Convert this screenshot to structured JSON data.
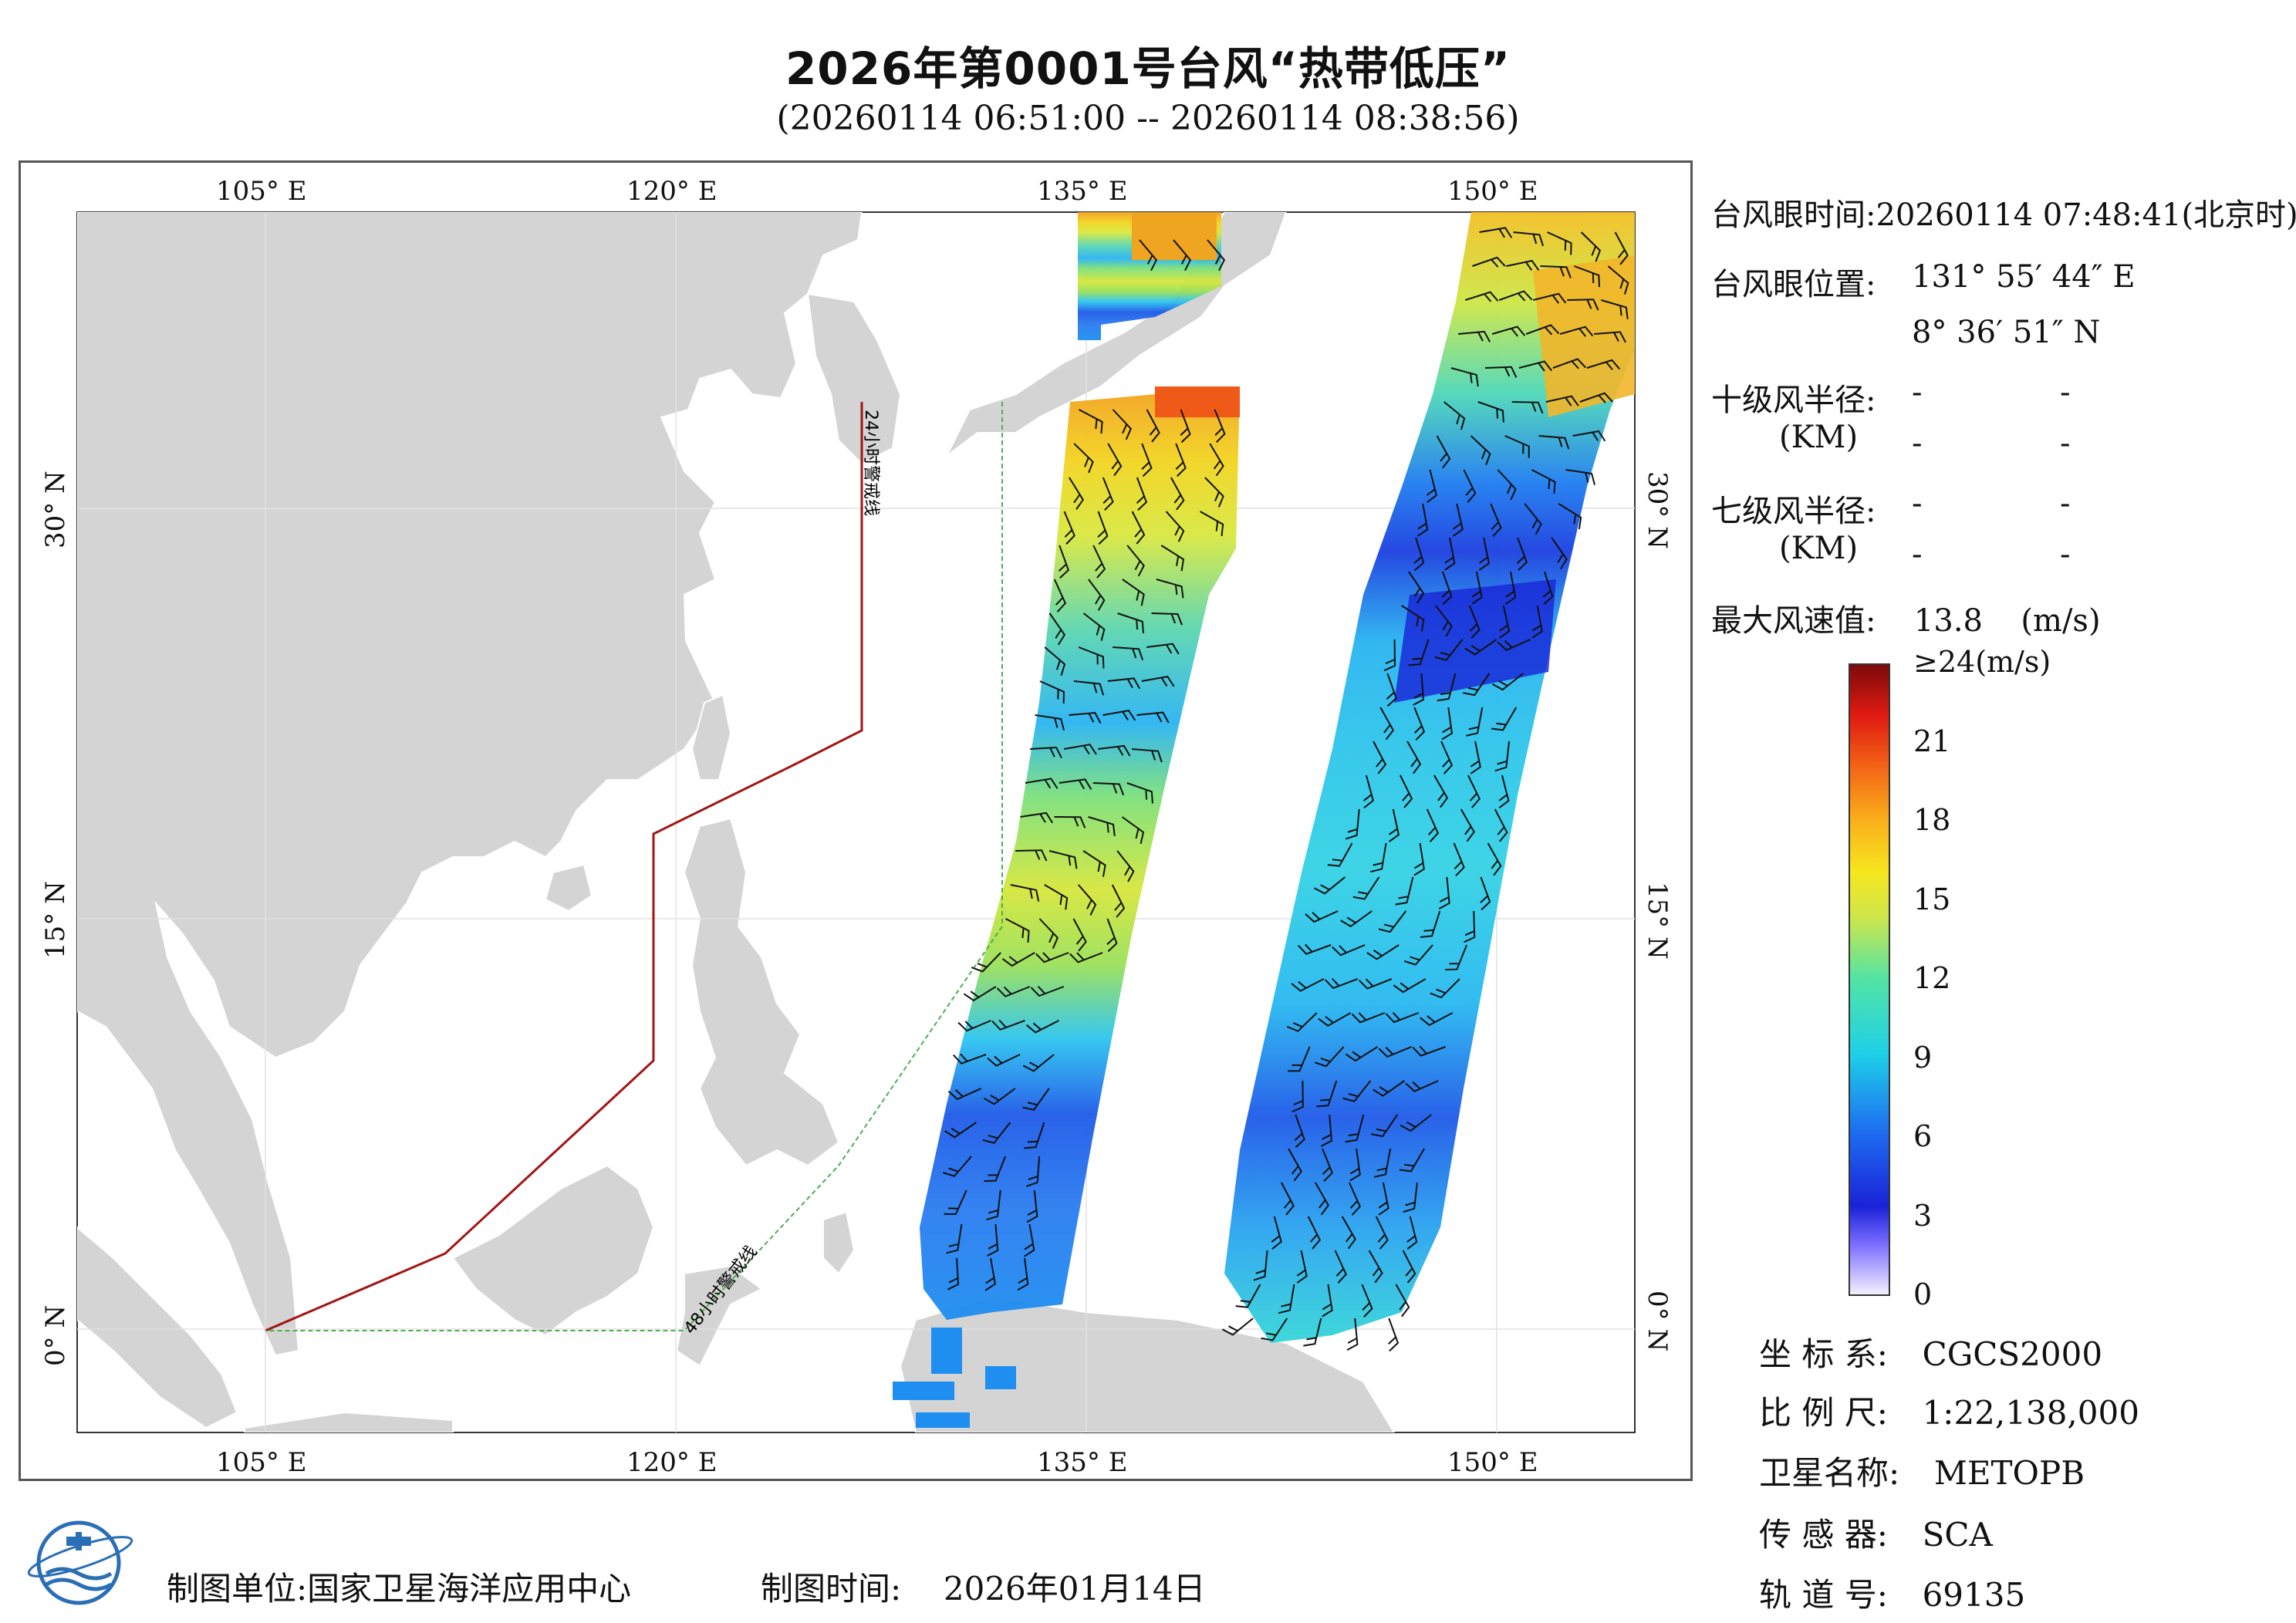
{
  "title": "2026年第0001号台风“热带低压”",
  "subtitle": "(20260114 06:51:00 -- 20260114 08:38:56)",
  "map": {
    "top_ticks": [
      "105° E",
      "120° E",
      "135° E",
      "150° E"
    ],
    "bottom_ticks": [
      "105° E",
      "120° E",
      "135° E",
      "150° E"
    ],
    "left_ticks": [
      "30° N",
      "15° N",
      "0° N"
    ],
    "right_ticks": [
      "30° N",
      "15° N",
      "0° N"
    ],
    "warning_24h_label": "24小时警戒线",
    "warning_48h_label": "48小时警戒线",
    "colors": {
      "land": "#d4d4d4",
      "ocean": "#ffffff",
      "line_24h": "#a31515",
      "line_48h": "#4caf50",
      "wind_barb": "#111111"
    }
  },
  "info": {
    "eye_time_label": "台风眼时间:",
    "eye_time_value": "20260114 07:48:41(北京时)",
    "eye_pos_label": "台风眼位置:",
    "eye_lon": "131° 55′ 44″ E",
    "eye_lat": "8° 36′ 51″ N",
    "r10_label": "十级风半径:",
    "r10_unit": "(KM)",
    "r7_label": "七级风半径:",
    "r7_unit": "(KM)",
    "dash": "-",
    "max_wind_label": "最大风速值:",
    "max_wind_value": "13.8",
    "max_wind_unit": "(m/s)"
  },
  "colorbar": {
    "labels": [
      "≥24(m/s)",
      "21",
      "18",
      "15",
      "12",
      "9",
      "6",
      "3",
      "0"
    ],
    "values": [
      24,
      21,
      18,
      15,
      12,
      9,
      6,
      3,
      0
    ]
  },
  "meta": {
    "coord_label": "坐 标 系:",
    "coord_value": "CGCS2000",
    "scale_label": "比 例 尺:",
    "scale_value": "1:22,138,000",
    "sat_label": "卫星名称:",
    "sat_value": "METOPB",
    "sensor_label": "传 感 器:",
    "sensor_value": "SCA",
    "orbit_label": "轨 道 号:",
    "orbit_value": "69135"
  },
  "footer": {
    "maker_label": "制图单位:",
    "maker_value": "国家卫星海洋应用中心",
    "time_label": "制图时间:",
    "time_value": "2026年01月14日"
  }
}
